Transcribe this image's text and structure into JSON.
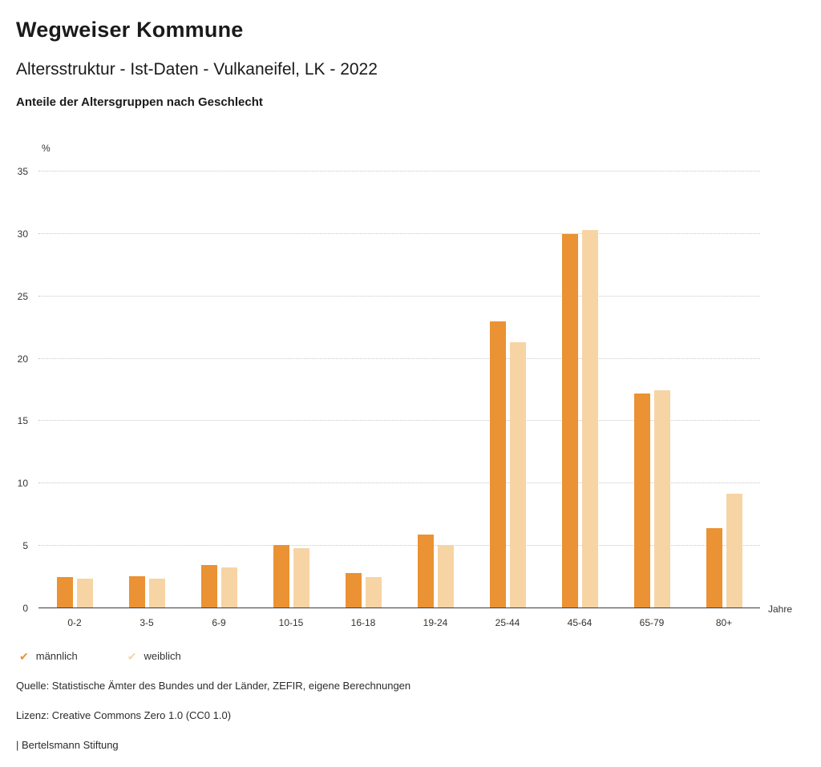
{
  "header": {
    "title": "Wegweiser Kommune",
    "subtitle": "Altersstruktur - Ist-Daten - Vulkaneifel, LK - 2022",
    "subsubtitle": "Anteile der Altersgruppen nach Geschlecht"
  },
  "chart_data": {
    "type": "bar",
    "title": "Anteile der Altersgruppen nach Geschlecht",
    "categories": [
      "0-2",
      "3-5",
      "6-9",
      "10-15",
      "16-18",
      "19-24",
      "25-44",
      "45-64",
      "65-79",
      "80+"
    ],
    "series": [
      {
        "name": "männlich",
        "color": "#EA9234",
        "values": [
          2.5,
          2.6,
          3.5,
          5.1,
          2.8,
          5.9,
          23.0,
          30.0,
          17.2,
          6.4
        ]
      },
      {
        "name": "weiblich",
        "color": "#F7D4A4",
        "values": [
          2.4,
          2.4,
          3.3,
          4.8,
          2.5,
          5.1,
          21.3,
          30.3,
          17.5,
          9.2
        ]
      }
    ],
    "xlabel": "Jahre",
    "ylabel": "%",
    "ylim": [
      0,
      35
    ],
    "yticks": [
      0,
      5,
      10,
      15,
      20,
      25,
      30,
      35
    ],
    "grid": true,
    "grid_style": "dotted",
    "legend_position": "bottom",
    "legend_marker": "✔"
  },
  "footer": {
    "source": "Quelle: Statistische Ämter des Bundes und der Länder, ZEFIR, eigene Berechnungen",
    "license": "Lizenz: Creative Commons Zero 1.0 (CC0 1.0)",
    "attribution": "| Bertelsmann Stiftung"
  }
}
